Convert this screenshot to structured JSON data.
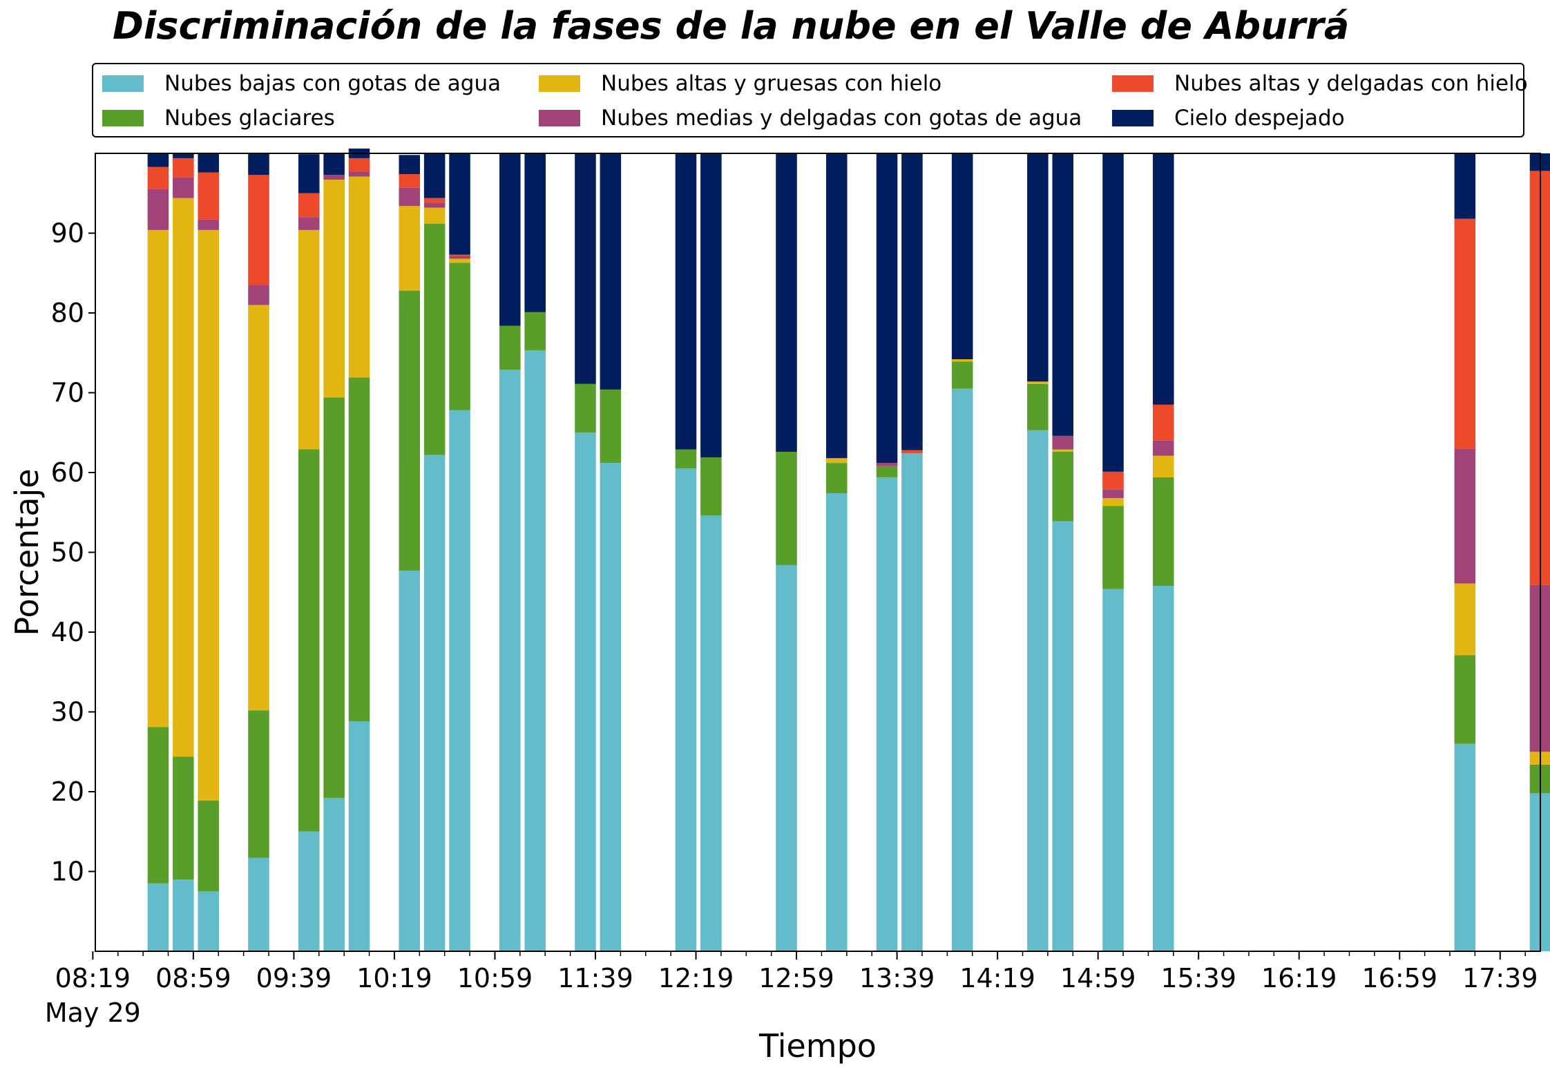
{
  "chart_data": {
    "type": "bar",
    "stacked": true,
    "title": "Discriminación de la fases de la nube en el Valle de Aburrá",
    "xlabel": "Tiempo",
    "ylabel": "Porcentaje",
    "ylim": [
      0,
      100
    ],
    "yticks": [
      10,
      20,
      30,
      40,
      50,
      60,
      70,
      80,
      90
    ],
    "x_range_minutes": [
      500,
      1075
    ],
    "xticks": [
      {
        "minutes": 499,
        "label": "08:19",
        "sublabel": "May 29"
      },
      {
        "minutes": 539,
        "label": "08:59"
      },
      {
        "minutes": 579,
        "label": "09:39"
      },
      {
        "minutes": 619,
        "label": "10:19"
      },
      {
        "minutes": 659,
        "label": "10:59"
      },
      {
        "minutes": 699,
        "label": "11:39"
      },
      {
        "minutes": 739,
        "label": "12:19"
      },
      {
        "minutes": 779,
        "label": "12:59"
      },
      {
        "minutes": 819,
        "label": "13:39"
      },
      {
        "minutes": 859,
        "label": "14:19"
      },
      {
        "minutes": 899,
        "label": "14:59"
      },
      {
        "minutes": 939,
        "label": "15:39"
      },
      {
        "minutes": 979,
        "label": "16:19"
      },
      {
        "minutes": 1019,
        "label": "16:59"
      },
      {
        "minutes": 1059,
        "label": "17:39"
      }
    ],
    "legend_position": "top",
    "grid": false,
    "bar_width_minutes": 8.4,
    "x": [
      "08:45",
      "08:55",
      "09:05",
      "09:25",
      "09:45",
      "09:55",
      "10:05",
      "10:25",
      "10:35",
      "10:45",
      "11:05",
      "11:15",
      "11:35",
      "11:45",
      "12:15",
      "12:25",
      "12:55",
      "13:15",
      "13:35",
      "13:45",
      "14:05",
      "14:35",
      "14:45",
      "15:05",
      "15:25",
      "17:25",
      "17:55"
    ],
    "series": [
      {
        "name": "Nubes bajas con gotas de agua",
        "color": "#63BCC9",
        "values": [
          8.5,
          9,
          7.5,
          11.7,
          15,
          19.2,
          28.8,
          47.7,
          62.2,
          67.8,
          72.9,
          75.3,
          65,
          61.2,
          60.5,
          54.6,
          48.4,
          57.4,
          59.4,
          62.4,
          70.5,
          65.3,
          53.9,
          45.4,
          45.8,
          26,
          19.8
        ]
      },
      {
        "name": "Nubes glaciares",
        "color": "#5A9E2A",
        "values": [
          19.6,
          15.4,
          11.4,
          18.5,
          47.9,
          50.2,
          43.1,
          35.1,
          29,
          18.5,
          5.5,
          4.8,
          6.1,
          9.2,
          2.4,
          7.3,
          14.2,
          3.8,
          1.4,
          0,
          3.4,
          5.8,
          8.7,
          10.4,
          13.6,
          11.1,
          3.6
        ]
      },
      {
        "name": "Nubes altas y gruesas con hielo",
        "color": "#E2B512",
        "values": [
          62.3,
          70,
          71.5,
          50.8,
          27.5,
          27.3,
          25.2,
          10.6,
          2,
          0.5,
          0,
          0,
          0,
          0,
          0,
          0,
          0,
          0.6,
          0,
          0,
          0.3,
          0.3,
          0.3,
          1,
          2.7,
          9,
          1.6
        ]
      },
      {
        "name": "Nubes medias y delgadas con gotas de agua",
        "color": "#A14378",
        "values": [
          5.1,
          2.6,
          1.3,
          2.5,
          1.6,
          0.6,
          0.6,
          2.3,
          0.6,
          0.3,
          0,
          0,
          0,
          0,
          0,
          0,
          0,
          0,
          0.4,
          0,
          0,
          0,
          1.7,
          1.1,
          1.9,
          16.9,
          20.9
        ]
      },
      {
        "name": "Nubes altas y delgadas con hielo",
        "color": "#EC4A2A",
        "values": [
          2.8,
          2.4,
          5.9,
          13.8,
          3,
          0,
          1.7,
          1.7,
          0.6,
          0.2,
          0,
          0,
          0,
          0,
          0,
          0,
          0,
          0,
          0,
          0.4,
          0,
          0,
          0,
          2.2,
          4.5,
          28.8,
          51.9
        ]
      },
      {
        "name": "Cielo despejado",
        "color": "#031E5E",
        "values": [
          1.7,
          0.6,
          2.4,
          2.7,
          4.9,
          2.7,
          1.2,
          2.4,
          5.6,
          12.7,
          21.6,
          19.9,
          28.9,
          29.6,
          37.1,
          38.1,
          37.4,
          38.2,
          38.8,
          37.2,
          25.8,
          28.6,
          35.4,
          39.9,
          31.5,
          8.2,
          2.2
        ]
      }
    ]
  }
}
